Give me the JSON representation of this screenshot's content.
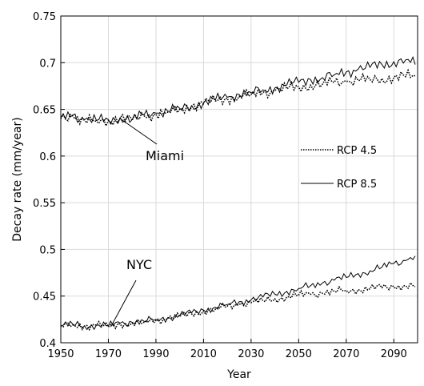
{
  "chart_data": {
    "type": "line",
    "title": "",
    "xlabel": "Year",
    "ylabel": "Decay rate (mm/year)",
    "xlim": [
      1950,
      2100
    ],
    "ylim": [
      0.4,
      0.75
    ],
    "xticks": [
      1950,
      1970,
      1990,
      2010,
      2030,
      2050,
      2070,
      2090
    ],
    "yticks": [
      0.4,
      0.45,
      0.5,
      0.55,
      0.6,
      0.65,
      0.7,
      0.75
    ],
    "ytick_labels": [
      "0.4",
      "0.45",
      "0.5",
      "0.55",
      "0.6",
      "0.65",
      "0.7",
      "0.75"
    ],
    "grid": true,
    "legend_position": "right-middle",
    "legend": [
      {
        "label": "RCP 4.5",
        "style": "dotted"
      },
      {
        "label": "RCP 8.5",
        "style": "solid"
      }
    ],
    "annotations": [
      {
        "text": "Miami",
        "points_to": [
          1975,
          0.64
        ]
      },
      {
        "text": "NYC",
        "points_to": [
          1971,
          0.417
        ]
      }
    ],
    "series": [
      {
        "group": "Miami",
        "style": "dotted",
        "x": [
          1950,
          1955,
          1960,
          1965,
          1970,
          1975,
          1980,
          1985,
          1990,
          1995,
          2000,
          2005,
          2010,
          2015,
          2020,
          2025,
          2030,
          2035,
          2040,
          2045,
          2050,
          2055,
          2060,
          2065,
          2070,
          2075,
          2080,
          2085,
          2090,
          2095,
          2099
        ],
        "y": [
          0.64,
          0.643,
          0.638,
          0.637,
          0.638,
          0.641,
          0.638,
          0.643,
          0.645,
          0.647,
          0.65,
          0.653,
          0.656,
          0.659,
          0.662,
          0.664,
          0.666,
          0.668,
          0.67,
          0.672,
          0.674,
          0.676,
          0.677,
          0.679,
          0.68,
          0.681,
          0.682,
          0.683,
          0.684,
          0.685,
          0.686
        ]
      },
      {
        "group": "Miami",
        "style": "solid",
        "x": [
          1950,
          1955,
          1960,
          1965,
          1970,
          1975,
          1980,
          1985,
          1990,
          1995,
          2000,
          2005,
          2010,
          2015,
          2020,
          2025,
          2030,
          2035,
          2040,
          2045,
          2050,
          2055,
          2060,
          2065,
          2070,
          2075,
          2080,
          2085,
          2090,
          2095,
          2099
        ],
        "y": [
          0.641,
          0.644,
          0.639,
          0.638,
          0.639,
          0.641,
          0.639,
          0.644,
          0.646,
          0.648,
          0.651,
          0.654,
          0.657,
          0.66,
          0.663,
          0.666,
          0.668,
          0.671,
          0.673,
          0.676,
          0.679,
          0.682,
          0.684,
          0.687,
          0.69,
          0.693,
          0.695,
          0.698,
          0.701,
          0.703,
          0.698
        ]
      },
      {
        "group": "NYC",
        "style": "dotted",
        "x": [
          1950,
          1955,
          1960,
          1965,
          1970,
          1975,
          1980,
          1985,
          1990,
          1995,
          2000,
          2005,
          2010,
          2015,
          2020,
          2025,
          2030,
          2035,
          2040,
          2045,
          2050,
          2055,
          2060,
          2065,
          2070,
          2075,
          2080,
          2085,
          2090,
          2095,
          2099
        ],
        "y": [
          0.418,
          0.419,
          0.418,
          0.419,
          0.417,
          0.42,
          0.421,
          0.422,
          0.424,
          0.426,
          0.428,
          0.431,
          0.434,
          0.436,
          0.439,
          0.441,
          0.443,
          0.445,
          0.447,
          0.449,
          0.451,
          0.452,
          0.453,
          0.455,
          0.456,
          0.457,
          0.458,
          0.459,
          0.46,
          0.461,
          0.46
        ]
      },
      {
        "group": "NYC",
        "style": "solid",
        "x": [
          1950,
          1955,
          1960,
          1965,
          1970,
          1975,
          1980,
          1985,
          1990,
          1995,
          2000,
          2005,
          2010,
          2015,
          2020,
          2025,
          2030,
          2035,
          2040,
          2045,
          2050,
          2055,
          2060,
          2065,
          2070,
          2075,
          2080,
          2085,
          2090,
          2095,
          2099
        ],
        "y": [
          0.418,
          0.42,
          0.418,
          0.419,
          0.418,
          0.421,
          0.422,
          0.423,
          0.425,
          0.427,
          0.429,
          0.432,
          0.435,
          0.438,
          0.441,
          0.444,
          0.446,
          0.449,
          0.452,
          0.455,
          0.458,
          0.461,
          0.464,
          0.467,
          0.47,
          0.474,
          0.477,
          0.481,
          0.485,
          0.488,
          0.493
        ]
      }
    ]
  }
}
